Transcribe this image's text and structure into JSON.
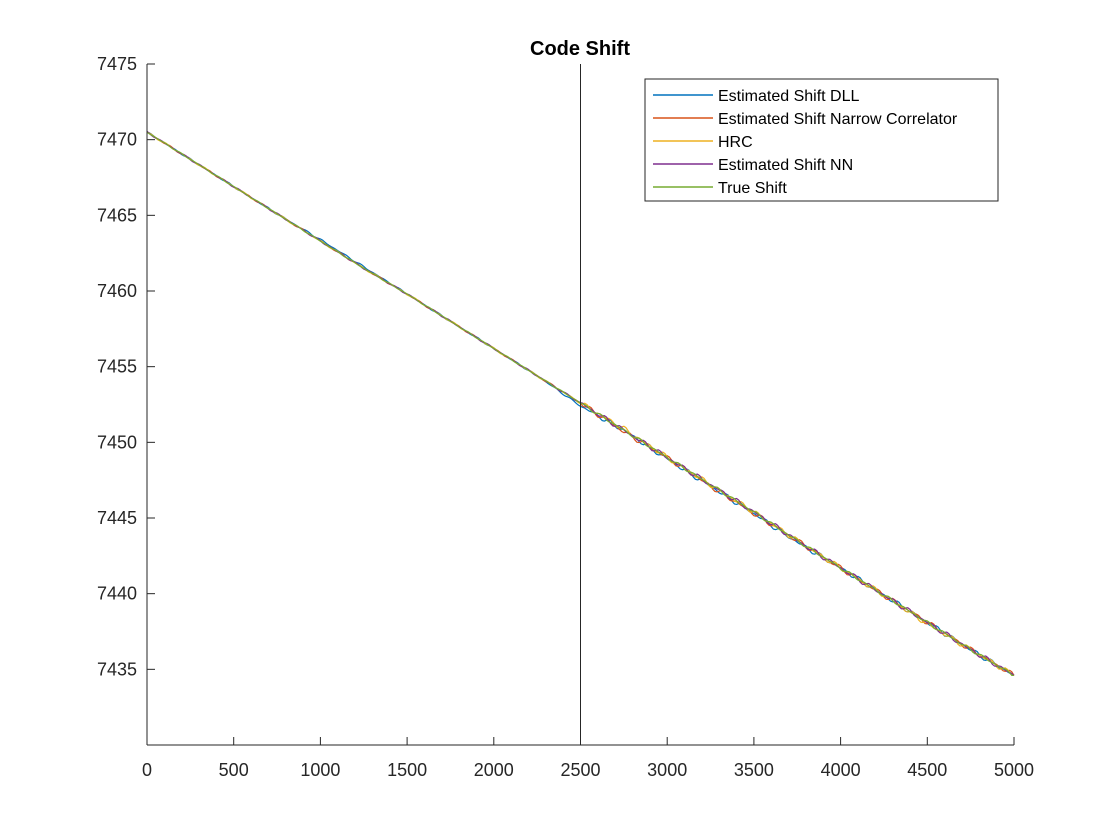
{
  "chart_data": {
    "type": "line",
    "title": "Code Shift",
    "xlabel": "",
    "ylabel": "",
    "xlim": [
      0,
      5000
    ],
    "ylim": [
      7430,
      7475
    ],
    "xticks": [
      0,
      500,
      1000,
      1500,
      2000,
      2500,
      3000,
      3500,
      4000,
      4500,
      5000
    ],
    "yticks": [
      7435,
      7440,
      7445,
      7450,
      7455,
      7460,
      7465,
      7470,
      7475
    ],
    "xtick_labels": [
      "0",
      "500",
      "1000",
      "1500",
      "2000",
      "2500",
      "3000",
      "3500",
      "4000",
      "4500",
      "5000"
    ],
    "ytick_labels": [
      "7435",
      "7440",
      "7445",
      "7450",
      "7455",
      "7460",
      "7465",
      "7470",
      "7475"
    ],
    "grid": false,
    "legend_position": "top-right",
    "vertical_line_x": 2500,
    "x": [
      0,
      250,
      500,
      750,
      1000,
      1250,
      1500,
      1750,
      2000,
      2250,
      2500,
      2750,
      3000,
      3250,
      3500,
      3750,
      4000,
      4250,
      4500,
      4750,
      5000
    ],
    "series": [
      {
        "name": "Estimated Shift DLL",
        "color": "#0072BD",
        "values": [
          7470.5,
          7468.7,
          7466.9,
          7465.1,
          7463.4,
          7461.6,
          7459.8,
          7458.0,
          7456.2,
          7454.4,
          7452.4,
          7450.8,
          7448.9,
          7447.1,
          7445.3,
          7443.4,
          7441.7,
          7439.9,
          7438.1,
          7436.3,
          7434.6
        ]
      },
      {
        "name": "Estimated Shift Narrow Correlator",
        "color": "#D95319",
        "values": [
          7470.5,
          7468.7,
          7466.9,
          7465.1,
          7463.3,
          7461.5,
          7459.8,
          7458.0,
          7456.2,
          7454.4,
          7452.6,
          7450.7,
          7449.0,
          7447.1,
          7445.3,
          7443.5,
          7441.7,
          7439.9,
          7438.1,
          7436.3,
          7434.6
        ]
      },
      {
        "name": "HRC",
        "color": "#EDB120",
        "values": [
          7470.5,
          7468.7,
          7466.9,
          7465.1,
          7463.3,
          7461.5,
          7459.8,
          7458.0,
          7456.2,
          7454.4,
          7452.6,
          7450.9,
          7449.0,
          7447.2,
          7445.4,
          7443.5,
          7441.7,
          7439.9,
          7438.0,
          7436.3,
          7434.6
        ]
      },
      {
        "name": "Estimated Shift NN",
        "color": "#7E2F8E",
        "values": [
          7470.5,
          7468.7,
          7466.9,
          7465.1,
          7463.3,
          7461.5,
          7459.8,
          7458.0,
          7456.2,
          7454.4,
          7452.6,
          7450.8,
          7449.0,
          7447.2,
          7445.4,
          7443.5,
          7441.7,
          7439.9,
          7438.1,
          7436.3,
          7434.6
        ]
      },
      {
        "name": "True Shift",
        "color": "#77AC30",
        "values": [
          7470.5,
          7468.7,
          7466.9,
          7465.1,
          7463.3,
          7461.5,
          7459.8,
          7458.0,
          7456.2,
          7454.4,
          7452.6,
          7450.8,
          7449.0,
          7447.2,
          7445.4,
          7443.5,
          7441.7,
          7439.9,
          7438.1,
          7436.3,
          7434.6
        ]
      }
    ]
  }
}
